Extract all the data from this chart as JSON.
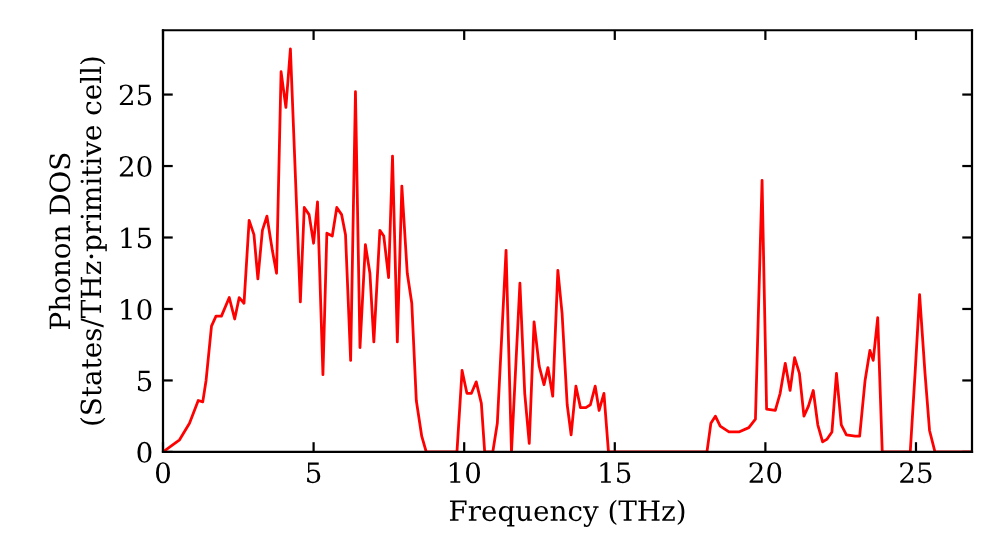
{
  "chart_data": {
    "type": "line",
    "xlabel": "Frequency (THz)",
    "ylabel": "Phonon DOS\n(States/THz·primitive cell)",
    "xlim": [
      0,
      26.86
    ],
    "ylim": [
      0,
      29.5
    ],
    "xticks": [
      0,
      5,
      10,
      15,
      20,
      25
    ],
    "yticks": [
      0,
      5,
      10,
      15,
      20,
      25
    ],
    "grid": false,
    "legend": false,
    "marker": "none",
    "line_style": "solid",
    "series": [
      {
        "color": "#ff0000",
        "x": [
          0,
          0.55,
          0.88,
          1.17,
          1.32,
          1.43,
          1.61,
          1.76,
          1.94,
          2.2,
          2.38,
          2.53,
          2.69,
          2.86,
          3.02,
          3.15,
          3.3,
          3.45,
          3.63,
          3.77,
          3.92,
          4.08,
          4.23,
          4.56,
          4.69,
          4.85,
          5.0,
          5.13,
          5.31,
          5.44,
          5.62,
          5.77,
          5.93,
          6.06,
          6.23,
          6.39,
          6.54,
          6.72,
          6.87,
          7.0,
          7.2,
          7.33,
          7.49,
          7.62,
          7.78,
          7.93,
          8.11,
          8.26,
          8.41,
          8.59,
          8.74,
          9.76,
          9.93,
          10.09,
          10.24,
          10.4,
          10.57,
          10.68,
          10.95,
          11.1,
          11.39,
          11.57,
          11.85,
          12.01,
          12.16,
          12.32,
          12.49,
          12.65,
          12.78,
          12.94,
          13.11,
          13.25,
          13.42,
          13.55,
          13.71,
          13.86,
          14.04,
          14.19,
          14.35,
          14.48,
          14.64,
          14.79,
          18.06,
          18.19,
          18.34,
          18.5,
          18.79,
          19.12,
          19.45,
          19.67,
          19.89,
          20.04,
          20.33,
          20.49,
          20.66,
          20.82,
          20.97,
          21.13,
          21.28,
          21.43,
          21.59,
          21.74,
          21.9,
          22.05,
          22.21,
          22.36,
          22.52,
          22.69,
          22.98,
          23.13,
          23.31,
          23.47,
          23.58,
          23.73,
          23.88,
          24.81,
          24.97,
          25.12,
          25.3,
          25.45,
          25.63,
          26.86
        ],
        "values": [
          0,
          0.85,
          2.0,
          3.6,
          3.5,
          5.0,
          8.8,
          9.5,
          9.5,
          10.8,
          9.3,
          10.8,
          10.4,
          16.2,
          15.2,
          12.1,
          15.5,
          16.5,
          14.1,
          12.5,
          26.6,
          24.1,
          28.2,
          10.5,
          17.1,
          16.6,
          14.6,
          17.5,
          5.4,
          15.3,
          15.1,
          17.1,
          16.6,
          15.2,
          6.4,
          25.2,
          7.3,
          14.5,
          12.5,
          7.7,
          15.5,
          15.1,
          12.2,
          20.7,
          7.7,
          18.6,
          12.5,
          10.4,
          3.6,
          1.1,
          0,
          0,
          5.7,
          4.1,
          4.1,
          4.9,
          3.4,
          0,
          0,
          2.0,
          14.1,
          0,
          11.8,
          4.1,
          0.6,
          9.1,
          6.0,
          4.7,
          5.9,
          3.9,
          12.7,
          9.7,
          3.3,
          1.2,
          4.6,
          3.1,
          3.1,
          3.3,
          4.6,
          2.9,
          4.1,
          0,
          0,
          2.0,
          2.5,
          1.8,
          1.4,
          1.4,
          1.7,
          2.3,
          19.0,
          3.0,
          2.9,
          4.1,
          6.2,
          4.3,
          6.6,
          5.5,
          2.5,
          3.2,
          4.3,
          1.9,
          0.7,
          0.9,
          1.4,
          5.5,
          1.9,
          1.2,
          1.1,
          1.1,
          5.0,
          7.1,
          6.4,
          9.4,
          0,
          0,
          5.5,
          11.0,
          5.5,
          1.5,
          0,
          0
        ]
      }
    ]
  }
}
